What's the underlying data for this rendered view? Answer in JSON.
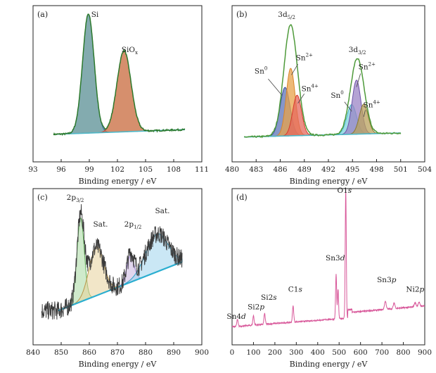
{
  "chart_data": [
    {
      "panel": "(a)",
      "type": "line",
      "xlabel": "Binding energy / eV",
      "xlim": [
        93,
        111
      ],
      "xticks": [
        93,
        96,
        99,
        102,
        105,
        108,
        111
      ],
      "ylabel": "",
      "x_reversed": false,
      "background": {
        "from": [
          95.2,
          0.11
        ],
        "to": [
          109.2,
          0.145
        ]
      },
      "peaks": [
        {
          "name": "Si",
          "center": 98.9,
          "height": 0.88,
          "sigma": 0.62,
          "fill": "#5a8f94",
          "line": "#2f5fa8",
          "label_color": "#3fa9d8"
        },
        {
          "name": "SiOx",
          "center": 102.7,
          "height": 0.6,
          "sigma": 0.75,
          "fill": "#c8693c",
          "line": "#d83a2e",
          "label_color": "#d83a2e"
        }
      ],
      "labels": [
        {
          "text": "Si",
          "x": 99.6,
          "y": 0.98
        },
        {
          "text": "SiO",
          "sub": "x",
          "x": 103.3,
          "y": 0.72
        }
      ]
    },
    {
      "panel": "(b)",
      "type": "line",
      "xlabel": "Binding energy / eV",
      "xlim": [
        480,
        504
      ],
      "xticks": [
        480,
        483,
        486,
        489,
        492,
        495,
        498,
        501,
        504
      ],
      "x_reversed": false,
      "background": {
        "from": [
          481.5,
          0.09
        ],
        "to": [
          501.0,
          0.12
        ]
      },
      "envelopes": [
        {
          "name": "3d5/2",
          "center": 487.3,
          "height": 0.82,
          "sigma": 0.85
        },
        {
          "name": "3d3/2",
          "center": 495.6,
          "height": 0.56,
          "sigma": 0.85
        }
      ],
      "peaks": [
        {
          "name": "Sn0",
          "center": 486.6,
          "height": 0.36,
          "sigma": 0.62,
          "fill": "#5e73b8",
          "line": "#3a4fa0"
        },
        {
          "name": "Sn2+",
          "center": 487.3,
          "height": 0.5,
          "sigma": 0.55,
          "fill": "#e7a24a",
          "line": "#d9862a"
        },
        {
          "name": "Sn4+",
          "center": 488.1,
          "height": 0.3,
          "sigma": 0.55,
          "fill": "#e6685c",
          "line": "#d73a2e"
        },
        {
          "name": "Sn0",
          "center": 494.9,
          "height": 0.22,
          "sigma": 0.6,
          "fill": "#7fd2dd",
          "line": "#3fb5c4"
        },
        {
          "name": "Sn2+",
          "center": 495.5,
          "height": 0.4,
          "sigma": 0.55,
          "fill": "#9b84c6",
          "line": "#6d52a8"
        },
        {
          "name": "Sn4+",
          "center": 496.4,
          "height": 0.22,
          "sigma": 0.55,
          "fill": "#b9a25c",
          "line": "#8a7a30"
        }
      ],
      "labels": [
        {
          "text": "3d",
          "sub": "5/2",
          "x": 486.8,
          "y": 0.98
        },
        {
          "text": "3d",
          "sub": "3/2",
          "x": 495.6,
          "y": 0.72
        },
        {
          "text": "Sn",
          "sup": "0",
          "x": 483.6,
          "y": 0.56,
          "color": "#3a4fa0"
        },
        {
          "text": "Sn",
          "sup": "2+",
          "x": 489.0,
          "y": 0.66,
          "color": "#d9862a"
        },
        {
          "text": "Sn",
          "sup": "4+",
          "x": 489.7,
          "y": 0.43,
          "color": "#d73a2e"
        },
        {
          "text": "Sn",
          "sup": "0",
          "x": 493.1,
          "y": 0.38,
          "color": "#3fb5c4"
        },
        {
          "text": "Sn",
          "sup": "2+",
          "x": 496.8,
          "y": 0.59,
          "color": "#6d52a8"
        },
        {
          "text": "Sn",
          "sup": "4+",
          "x": 497.4,
          "y": 0.31,
          "color": "#8a7a30"
        }
      ]
    },
    {
      "panel": "(c)",
      "type": "line",
      "xlabel": "Binding energy / eV",
      "xlim": [
        840,
        900
      ],
      "xticks": [
        840,
        850,
        860,
        870,
        880,
        890,
        900
      ],
      "x_reversed": false,
      "background": {
        "from": [
          849.0,
          0.16
        ],
        "to": [
          893.0,
          0.52
        ]
      },
      "peaks": [
        {
          "name": "2p3/2",
          "center": 856.9,
          "height": 0.62,
          "sigma": 1.3,
          "fill": "#a8d8a0",
          "line": "#5fae58"
        },
        {
          "name": "Sat.",
          "center": 862.5,
          "height": 0.36,
          "sigma": 2.6,
          "fill": "#e7d19a",
          "line": "#b9964a"
        },
        {
          "name": "2p1/2",
          "center": 874.6,
          "height": 0.2,
          "sigma": 1.3,
          "fill": "#c8b5e0",
          "line": "#8a6fbc"
        },
        {
          "name": "Sat.",
          "center": 884.0,
          "height": 0.28,
          "sigma": 4.0,
          "fill": "#9fd3ec",
          "line": "#2f9fc8"
        }
      ],
      "labels": [
        {
          "text": "2p",
          "sub": "3/2",
          "x": 855.0,
          "y": 0.98
        },
        {
          "text": "Sat.",
          "x": 864.0,
          "y": 0.78
        },
        {
          "text": "2p",
          "sub": "1/2",
          "x": 875.5,
          "y": 0.78
        },
        {
          "text": "Sat.",
          "x": 886.0,
          "y": 0.88
        }
      ]
    },
    {
      "panel": "(d)",
      "type": "line",
      "xlabel": "Binding energy / eV",
      "xlim": [
        0,
        900
      ],
      "xticks": [
        0,
        100,
        200,
        300,
        400,
        500,
        600,
        700,
        800,
        900
      ],
      "x_reversed": false,
      "line_color": "#d8589a",
      "survey_peaks": [
        {
          "x": 25,
          "h": 0.05,
          "w": 3
        },
        {
          "x": 100,
          "h": 0.07,
          "w": 3
        },
        {
          "x": 152,
          "h": 0.08,
          "w": 3
        },
        {
          "x": 285,
          "h": 0.12,
          "w": 3
        },
        {
          "x": 486,
          "h": 0.33,
          "w": 2.5
        },
        {
          "x": 495,
          "h": 0.22,
          "w": 2.5
        },
        {
          "x": 531,
          "h": 0.95,
          "w": 2.5
        },
        {
          "x": 716,
          "h": 0.06,
          "w": 4
        },
        {
          "x": 757,
          "h": 0.04,
          "w": 4
        },
        {
          "x": 855,
          "h": 0.03,
          "w": 4
        },
        {
          "x": 873,
          "h": 0.03,
          "w": 4
        }
      ],
      "labels": [
        {
          "text": "Sn4",
          "it": "d",
          "x": 20,
          "y": 0.1
        },
        {
          "text": "Si2",
          "it": "p",
          "x": 112,
          "y": 0.17
        },
        {
          "text": "Si2",
          "it": "s",
          "x": 172,
          "y": 0.24
        },
        {
          "text": "C1",
          "it": "s",
          "x": 295,
          "y": 0.3
        },
        {
          "text": "Sn3",
          "it": "d",
          "x": 482,
          "y": 0.53
        },
        {
          "text": "O1",
          "it": "s",
          "x": 525,
          "y": 1.03
        },
        {
          "text": "Sn3",
          "it": "p",
          "x": 722,
          "y": 0.37
        },
        {
          "text": "Ni2",
          "it": "p",
          "x": 855,
          "y": 0.3
        }
      ]
    }
  ]
}
